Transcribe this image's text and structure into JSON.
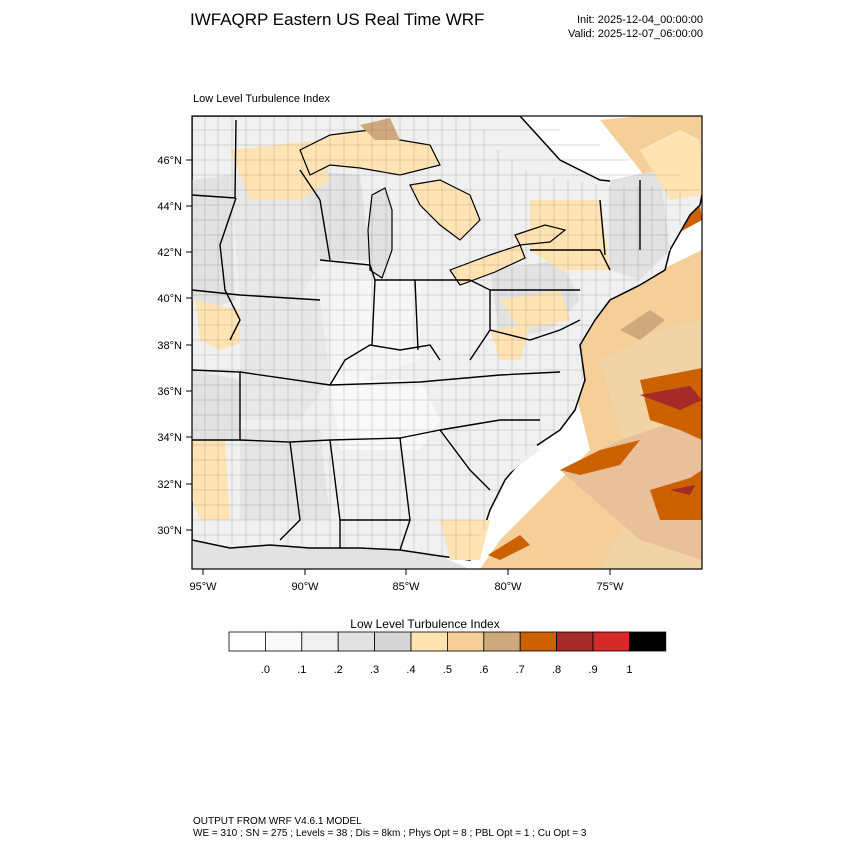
{
  "header": {
    "title": "IWFAQRP Eastern US Real Time WRF",
    "init": "Init: 2025-12-04_00:00:00",
    "valid": "Valid: 2025-12-07_06:00:00"
  },
  "map": {
    "subtitle": "Low Level Turbulence Index",
    "lat_labels": [
      "46°N",
      "44°N",
      "42°N",
      "40°N",
      "38°N",
      "36°N",
      "34°N",
      "32°N",
      "30°N"
    ],
    "lon_labels": [
      "95°W",
      "90°W",
      "85°W",
      "80°W",
      "75°W"
    ],
    "region": "Eastern United States"
  },
  "colorbar": {
    "title": "Low Level Turbulence Index",
    "labels": [
      ".0",
      ".1",
      ".2",
      ".3",
      ".4",
      ".5",
      ".6",
      ".7",
      ".8",
      ".9",
      "1"
    ],
    "colors": [
      "#ffffff",
      "#f9f9f9",
      "#f0f0f0",
      "#e2e2e2",
      "#d5d5d5",
      "#ffe3b3",
      "#f5cf9a",
      "#cfa97e",
      "#cc6100",
      "#a52a2a",
      "#d42a2a",
      "#000000"
    ]
  },
  "footer": {
    "line1": "OUTPUT FROM WRF V4.6.1 MODEL",
    "line2": "WE = 310 ; SN = 275 ; Levels = 38 ; Dis = 8km ; Phys Opt = 8 ; PBL Opt = 1 ; Cu Opt = 3"
  }
}
